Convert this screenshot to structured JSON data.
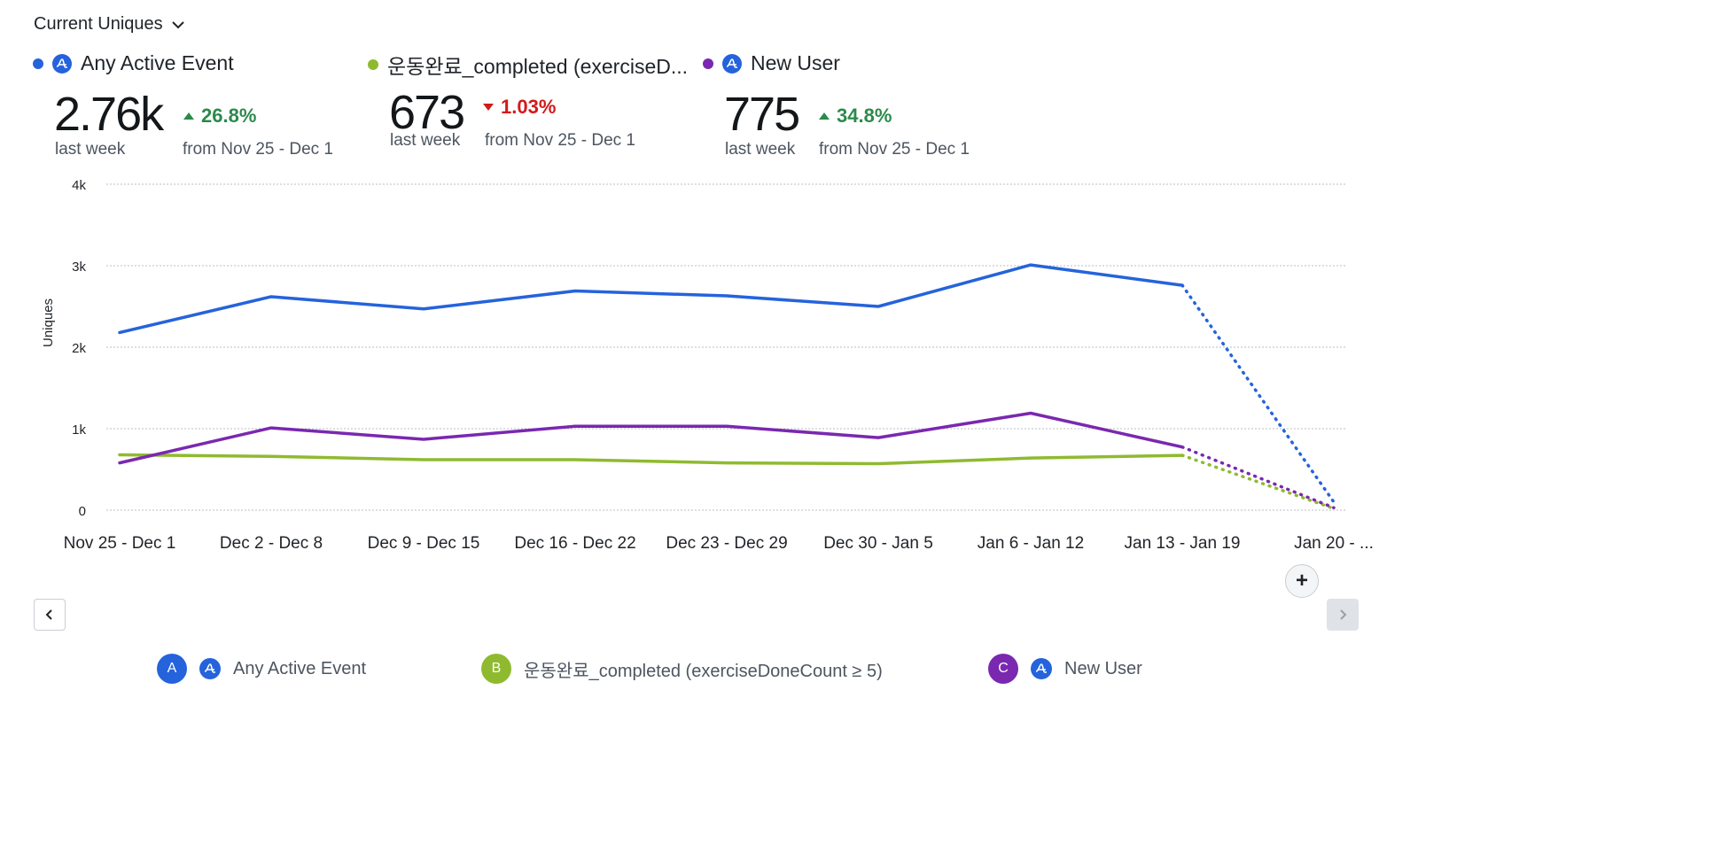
{
  "header": {
    "metric_label": "Current Uniques"
  },
  "summary": [
    {
      "name": "Any Active Event",
      "value": "2.76k",
      "period": "last week",
      "delta": "26.8%",
      "direction": "up",
      "from": "from Nov 25 - Dec 1",
      "color": "#2563dc",
      "dot_color": "#2563dc",
      "icon": "amplitude-logo-icon"
    },
    {
      "name": "운동완료_completed (exerciseD...",
      "value": "673",
      "period": "last week",
      "delta": "1.03%",
      "direction": "down",
      "from": "from Nov 25 - Dec 1",
      "color": "#8fba2f",
      "dot_color": "#8fba2f",
      "icon": ""
    },
    {
      "name": "New User",
      "value": "775",
      "period": "last week",
      "delta": "34.8%",
      "direction": "up",
      "from": "from Nov 25 - Dec 1",
      "color": "#7a28b0",
      "dot_color": "#7a28b0",
      "icon": "amplitude-logo-icon"
    }
  ],
  "colors": {
    "up": "#2b8a4b",
    "down": "#d11a1a",
    "grid": "#b9bec5",
    "icon_bg": "#2563dc"
  },
  "chart_data": {
    "type": "line",
    "ylabel": "Uniques",
    "ylim": [
      0,
      4000
    ],
    "yticks": [
      0,
      1000,
      2000,
      3000,
      4000
    ],
    "ytick_labels": [
      "0",
      "1k",
      "2k",
      "3k",
      "4k"
    ],
    "grid": true,
    "categories": [
      "Nov 25 - Dec 1",
      "Dec 2 - Dec 8",
      "Dec 9 - Dec 15",
      "Dec 16 - Dec 22",
      "Dec 23 - Dec 29",
      "Dec 30 - Jan 5",
      "Jan 6 - Jan 12",
      "Jan 13 - Jan 19",
      "Jan 20 - ..."
    ],
    "incomplete_from_index": 7,
    "series": [
      {
        "name": "Any Active Event",
        "color": "#2563dc",
        "values": [
          2180,
          2620,
          2470,
          2690,
          2630,
          2500,
          3010,
          2760,
          100
        ]
      },
      {
        "name": "운동완료_completed (exerciseDoneCount ≥ 5)",
        "color": "#8fba2f",
        "values": [
          680,
          660,
          620,
          620,
          580,
          570,
          640,
          673,
          20
        ]
      },
      {
        "name": "New User",
        "color": "#7a28b0",
        "values": [
          580,
          1010,
          870,
          1030,
          1030,
          890,
          1190,
          775,
          30
        ]
      }
    ]
  },
  "navigation": {
    "prev_icon": "chevron-left-icon",
    "next_icon": "chevron-right-icon",
    "add_label": "+"
  },
  "legend": [
    {
      "letter": "A",
      "name": "Any Active Event",
      "color": "#2563dc",
      "icon": "amplitude-logo-icon"
    },
    {
      "letter": "B",
      "name": "운동완료_completed (exerciseDoneCount ≥ 5)",
      "color": "#8fba2f",
      "icon": ""
    },
    {
      "letter": "C",
      "name": "New User",
      "color": "#7a28b0",
      "icon": "amplitude-logo-icon"
    }
  ]
}
